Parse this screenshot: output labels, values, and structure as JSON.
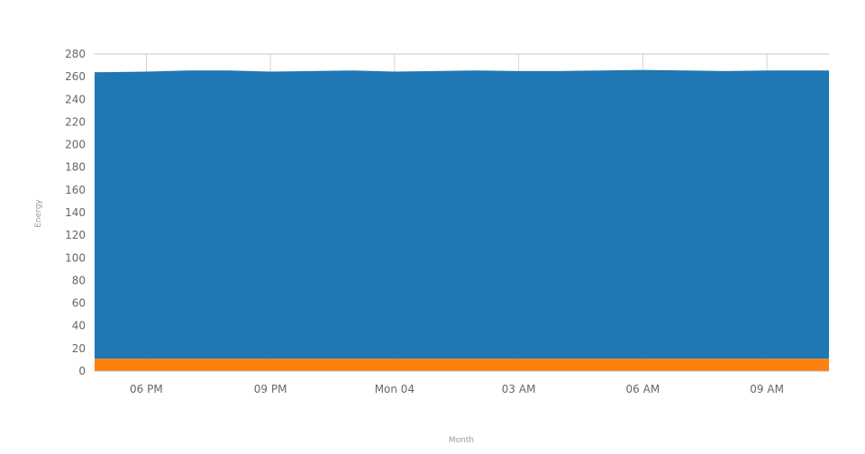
{
  "chart_data": {
    "type": "area",
    "stacked": true,
    "title": "",
    "xlabel": "Month",
    "ylabel": "Energy",
    "ylim": [
      0,
      280
    ],
    "yticks": [
      0,
      20,
      40,
      60,
      80,
      100,
      120,
      140,
      160,
      180,
      200,
      220,
      240,
      260,
      280
    ],
    "xlim": [
      "Sun 16:45",
      "Mon 10:30"
    ],
    "xticks": [
      {
        "time": "Sun 18:00",
        "label": "06 PM"
      },
      {
        "time": "Sun 21:00",
        "label": "09 PM"
      },
      {
        "time": "Mon 00:00",
        "label": "Mon 04"
      },
      {
        "time": "Mon 03:00",
        "label": "03 AM"
      },
      {
        "time": "Mon 06:00",
        "label": "06 AM"
      },
      {
        "time": "Mon 09:00",
        "label": "09 AM"
      }
    ],
    "grid": "vertical at x ticks, horizontal at top",
    "legend": "none",
    "x": [
      "Sun 16:45",
      "Sun 17:00",
      "Sun 18:00",
      "Sun 19:00",
      "Sun 20:00",
      "Sun 21:00",
      "Sun 22:00",
      "Sun 23:00",
      "Mon 00:00",
      "Mon 01:00",
      "Mon 02:00",
      "Mon 03:00",
      "Mon 04:00",
      "Mon 05:00",
      "Mon 06:00",
      "Mon 07:00",
      "Mon 08:00",
      "Mon 09:00",
      "Mon 10:00",
      "Mon 10:30"
    ],
    "series": [
      {
        "color": "#ff7f0e",
        "values": [
          11,
          11,
          11,
          11,
          11,
          11,
          11,
          11,
          11,
          11,
          11,
          11,
          11,
          11,
          11,
          11,
          11,
          11,
          11,
          11
        ]
      },
      {
        "color": "#1f77b4",
        "values": [
          253,
          253,
          253.5,
          254.5,
          254.5,
          253.5,
          254,
          254.5,
          253.5,
          254,
          254.5,
          254,
          254,
          254.5,
          255,
          254.5,
          254,
          254.5,
          254.5,
          254.5
        ]
      }
    ]
  }
}
